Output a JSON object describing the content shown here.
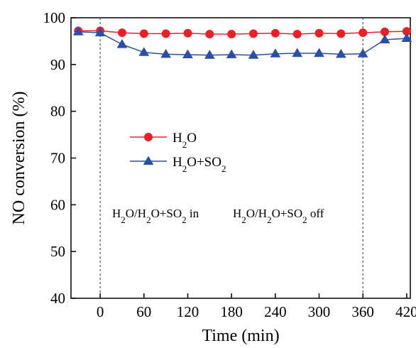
{
  "chart_data": {
    "type": "line",
    "title": "",
    "xlabel": "Time (min)",
    "ylabel": "NO conversion (%)",
    "xlim": [
      -40,
      425
    ],
    "ylim": [
      40,
      100
    ],
    "x_ticks": [
      0,
      60,
      120,
      180,
      240,
      300,
      360,
      420
    ],
    "y_ticks": [
      40,
      50,
      60,
      70,
      80,
      90,
      100
    ],
    "grid": false,
    "legend_position": "middle-left",
    "vertical_lines": [
      0,
      360
    ],
    "series": [
      {
        "name": "H2O",
        "label_main": "H",
        "label_sub": "2",
        "label_tail": "O",
        "color": "#e8202a",
        "marker": "circle",
        "x": [
          -30,
          0,
          30,
          60,
          90,
          120,
          150,
          180,
          210,
          240,
          270,
          300,
          330,
          360,
          390,
          420
        ],
        "y": [
          97.2,
          97.2,
          96.8,
          96.6,
          96.6,
          96.7,
          96.5,
          96.5,
          96.6,
          96.7,
          96.5,
          96.7,
          96.6,
          96.8,
          97.0,
          97.1
        ]
      },
      {
        "name": "H2O+SO2",
        "label_main": "H",
        "label_sub": "2",
        "label_tail": "O+SO",
        "label_sub2": "2",
        "color": "#2b4ea6",
        "marker": "triangle",
        "x": [
          -30,
          0,
          30,
          60,
          90,
          120,
          150,
          180,
          210,
          240,
          270,
          300,
          330,
          360,
          390,
          420
        ],
        "y": [
          97.0,
          96.8,
          94.3,
          92.6,
          92.2,
          92.1,
          92.0,
          92.1,
          92.0,
          92.3,
          92.4,
          92.4,
          92.2,
          92.3,
          95.3,
          95.6
        ]
      }
    ],
    "annotations": [
      {
        "id": "in",
        "at_x": 0,
        "parts": [
          "H",
          "2",
          "O/H",
          "2",
          "O+SO",
          "2",
          " in"
        ]
      },
      {
        "id": "off",
        "at_x": 190,
        "parts": [
          "H",
          "2",
          "O/H",
          "2",
          "O+SO",
          "2",
          " off"
        ]
      }
    ]
  }
}
